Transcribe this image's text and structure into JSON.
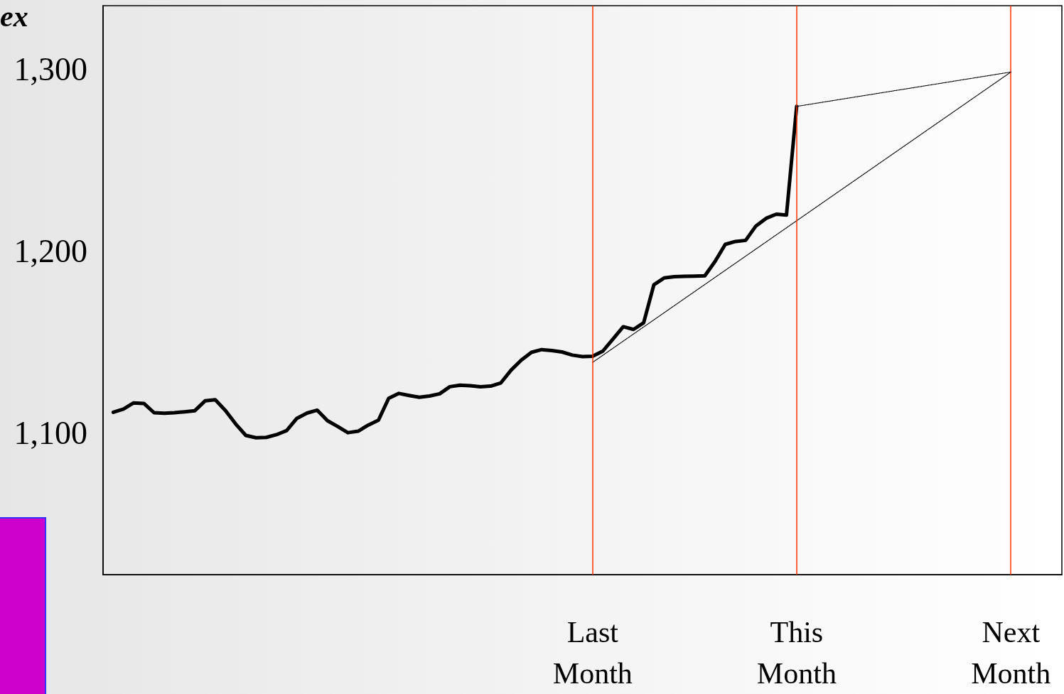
{
  "chart_data": {
    "type": "line",
    "ylabel": "ex",
    "categories": [
      null,
      null,
      null,
      null,
      null,
      null,
      null,
      null,
      null,
      null,
      null,
      null,
      null,
      null,
      null,
      null,
      null,
      null,
      null,
      null,
      null,
      null,
      null,
      null,
      null,
      null,
      null,
      null,
      null,
      null,
      null,
      null,
      null,
      null,
      null,
      null,
      null,
      null,
      null,
      null,
      null,
      null,
      null,
      null,
      null,
      null,
      null,
      null,
      "Last\nMonth",
      null,
      null,
      null,
      null,
      null,
      null,
      null,
      null,
      null,
      null,
      null,
      null,
      null,
      null,
      null,
      null,
      null,
      null,
      null,
      "This\nMonth",
      null,
      null,
      null,
      null,
      null,
      null,
      null,
      null,
      null,
      null,
      null,
      null,
      null,
      null,
      null,
      null,
      null,
      null,
      null,
      null,
      "Next\nMonth",
      null,
      null,
      null,
      null,
      null
    ],
    "ylim": [
      1022,
      1335
    ],
    "yticks": [
      {
        "value": 1100,
        "label": "1,100"
      },
      {
        "value": 1200,
        "label": "1,200"
      },
      {
        "value": 1300,
        "label": "1,300"
      }
    ],
    "grid": false,
    "marker": "none",
    "ref_lines": [
      {
        "axis": "x",
        "value": "Last\nMonth",
        "color": "#ff3300"
      },
      {
        "axis": "x",
        "value": "This\nMonth",
        "color": "#ff3300"
      },
      {
        "axis": "x",
        "value": "Next\nMonth",
        "color": "#ff3300"
      }
    ],
    "series": [
      {
        "color": "#000000",
        "line_style": "solid",
        "values": [
          null,
          1111.3,
          1113.1,
          1116.5,
          1116.2,
          1111.1,
          1110.8,
          1111.1,
          1111.6,
          1112.2,
          1117.6,
          1118.2,
          1112.3,
          1104.9,
          1098.6,
          1097.3,
          1097.5,
          1099,
          1101.3,
          1108,
          1110.9,
          1112.5,
          1106.7,
          1103.5,
          1100.1,
          1100.9,
          1104.3,
          1107,
          1119,
          1121.7,
          1120.6,
          1119.6,
          1120.3,
          1121.5,
          1125.4,
          1126.2,
          1125.9,
          1125.4,
          1125.7,
          1127.5,
          1134.5,
          1140,
          1144.3,
          1145.8,
          1145.3,
          1144.5,
          1142.8,
          1142,
          1142.2,
          1145,
          1151.7,
          1158.4,
          1156.9,
          1160.6,
          1181.5,
          1185.2,
          1185.9,
          1186.1,
          1186.2,
          1186.4,
          1194.3,
          1203.7,
          1205.3,
          1205.9,
          1213.8,
          1218,
          1220.3,
          1219.8,
          1279.6,
          null,
          null,
          null,
          null,
          null,
          null,
          null,
          null,
          null,
          null,
          null,
          null,
          null,
          null,
          null,
          null,
          null,
          null,
          null,
          null,
          null,
          null,
          null,
          null,
          null,
          null
        ]
      },
      {
        "color": "#000000",
        "line_style": "dotted",
        "values": [
          null,
          null,
          null,
          null,
          null,
          null,
          null,
          null,
          null,
          null,
          null,
          null,
          null,
          null,
          null,
          null,
          null,
          null,
          null,
          null,
          null,
          null,
          null,
          null,
          null,
          null,
          null,
          null,
          null,
          null,
          null,
          null,
          null,
          null,
          null,
          null,
          null,
          null,
          null,
          null,
          null,
          null,
          null,
          null,
          null,
          null,
          null,
          null,
          1138.8,
          null,
          null,
          null,
          null,
          null,
          null,
          null,
          null,
          null,
          null,
          null,
          null,
          null,
          null,
          null,
          null,
          null,
          null,
          null,
          null,
          null,
          null,
          null,
          null,
          null,
          null,
          null,
          null,
          null,
          null,
          null,
          null,
          null,
          null,
          null,
          null,
          null,
          null,
          null,
          null,
          1298.5,
          null,
          null,
          null,
          null,
          null
        ]
      },
      {
        "color": "#000000",
        "line_style": "dotted",
        "values": [
          null,
          null,
          null,
          null,
          null,
          null,
          null,
          null,
          null,
          null,
          null,
          null,
          null,
          null,
          null,
          null,
          null,
          null,
          null,
          null,
          null,
          null,
          null,
          null,
          null,
          null,
          null,
          null,
          null,
          null,
          null,
          null,
          null,
          null,
          null,
          null,
          null,
          null,
          null,
          null,
          null,
          null,
          null,
          null,
          null,
          null,
          null,
          null,
          null,
          null,
          null,
          null,
          null,
          null,
          null,
          null,
          null,
          null,
          null,
          null,
          null,
          null,
          null,
          null,
          null,
          null,
          null,
          null,
          1279.6,
          null,
          null,
          null,
          null,
          null,
          null,
          null,
          null,
          null,
          null,
          null,
          null,
          null,
          null,
          null,
          null,
          null,
          null,
          null,
          null,
          1298.5,
          null,
          null,
          null,
          null,
          null
        ]
      }
    ]
  }
}
